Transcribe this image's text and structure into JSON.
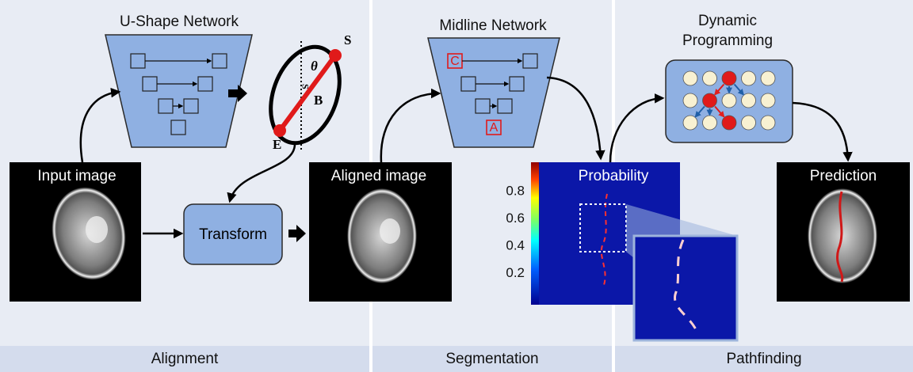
{
  "stages": [
    {
      "label": "Alignment"
    },
    {
      "label": "Segmentation"
    },
    {
      "label": "Pathfinding"
    }
  ],
  "alignment": {
    "network_title": "U-Shape Network",
    "ellipse_labels": {
      "s": "S",
      "theta": "θ",
      "tick": "S",
      "b": "B",
      "e": "E"
    },
    "input_label": "Input image",
    "transform_label": "Transform",
    "aligned_label": "Aligned image"
  },
  "segmentation": {
    "network_title": "Midline Network",
    "box_c": "C",
    "box_a": "A",
    "probability_label": "Probability",
    "colorbar_ticks": [
      "0.8",
      "0.6",
      "0.4",
      "0.2"
    ]
  },
  "pathfinding": {
    "title_lines": [
      "Dynamic",
      "Programming"
    ],
    "prediction_label": "Prediction"
  }
}
